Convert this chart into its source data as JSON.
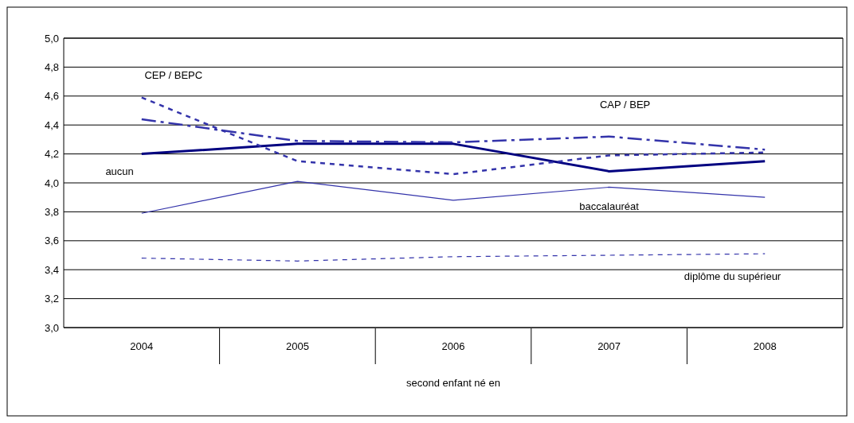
{
  "chart_data": {
    "type": "line",
    "xlabel": "second enfant né en",
    "categories": [
      "2004",
      "2005",
      "2006",
      "2007",
      "2008"
    ],
    "series": [
      {
        "name": "aucun",
        "color": "#000080",
        "line_style": "solid",
        "values": [
          4.2,
          4.27,
          4.27,
          4.08,
          4.15
        ]
      },
      {
        "name": "CEP / BEPC",
        "color": "#3333aa",
        "line_style": "dotted",
        "values": [
          4.59,
          4.15,
          4.06,
          4.19,
          4.21
        ]
      },
      {
        "name": "CAP / BEP",
        "color": "#3333aa",
        "line_style": "dashed",
        "values": [
          4.44,
          4.29,
          4.28,
          4.32,
          4.23
        ]
      },
      {
        "name": "baccalauréat",
        "color": "#3333aa",
        "line_style": "solid",
        "values": [
          3.79,
          4.01,
          3.88,
          3.97,
          3.9
        ]
      },
      {
        "name": "diplôme du supérieur",
        "color": "#3333aa",
        "line_style": "dotted",
        "values": [
          3.48,
          3.46,
          3.49,
          3.5,
          3.51
        ]
      }
    ],
    "ylim": [
      3.0,
      5.0
    ],
    "yticks": [
      {
        "value": 3.0,
        "label": "3,0"
      },
      {
        "value": 3.2,
        "label": "3,2"
      },
      {
        "value": 3.4,
        "label": "3,4"
      },
      {
        "value": 3.6,
        "label": "3,6"
      },
      {
        "value": 3.8,
        "label": "3,8"
      },
      {
        "value": 4.0,
        "label": "4,0"
      },
      {
        "value": 4.2,
        "label": "4,2"
      },
      {
        "value": 4.4,
        "label": "4,4"
      },
      {
        "value": 4.6,
        "label": "4,6"
      },
      {
        "value": 4.8,
        "label": "4,8"
      },
      {
        "value": 5.0,
        "label": "5,0"
      }
    ],
    "grid": "y",
    "legend": false,
    "marker": "none"
  }
}
